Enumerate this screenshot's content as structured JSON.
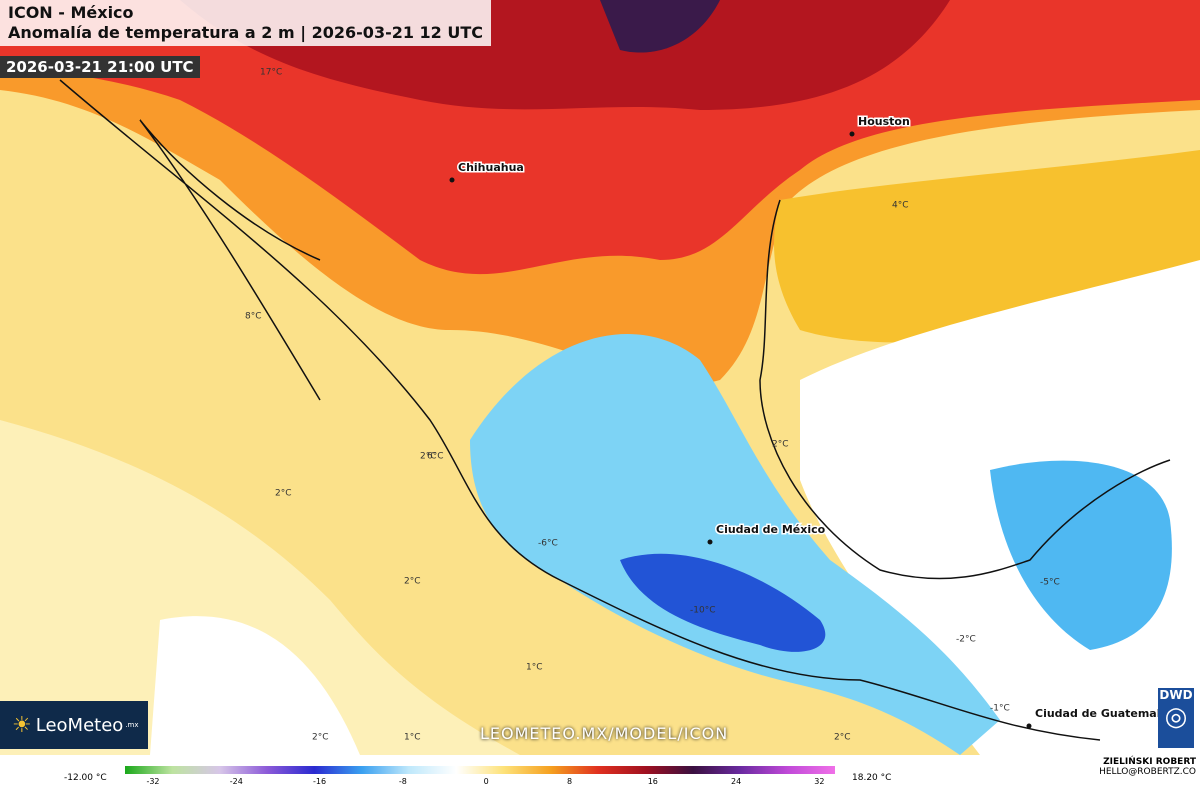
{
  "header": {
    "title": "ICON - México",
    "subtitle": "Anomalía de temperatura a 2 m | 2026-03-21 12 UTC",
    "valid_time": "2026-03-21 21:00 UTC"
  },
  "cities": [
    "Houston",
    "Chihuahua",
    "Ciudad de México",
    "Ciudad de Guatemala"
  ],
  "temperature_labels": [
    "17°C",
    "4°C",
    "8°C",
    "2°C",
    "2°C",
    "2°C",
    "2°C",
    "1°C",
    "1°C",
    "2°C",
    "-10°C",
    "-5°C",
    "-2°C",
    "-6°C",
    "-1°C",
    "2°C",
    "6°C"
  ],
  "logo": {
    "name": "LeoMeteo",
    "suffix": ".mx"
  },
  "url": "LEOMETEO.MX/MODEL/ICON",
  "legend": {
    "min_label": "-12.00 °C",
    "max_label": "18.20 °C",
    "ticks": [
      -32,
      -24,
      -16,
      -8,
      0,
      8,
      16,
      24,
      32
    ]
  },
  "credit": {
    "author": "ZIELIŃSKI ROBERT",
    "email": "HELLO@ROBERTZ.CO",
    "source": "DWD"
  }
}
